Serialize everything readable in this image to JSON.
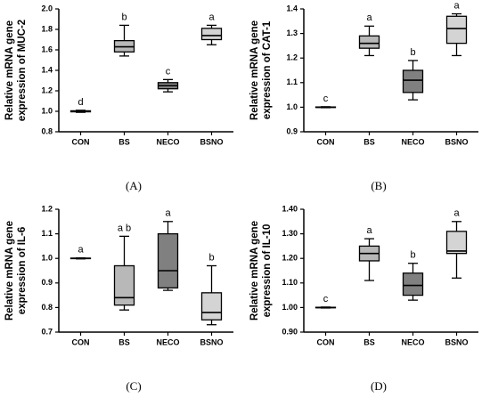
{
  "chart_data": [
    {
      "type": "box",
      "panel": "(A)",
      "ylabel": [
        "Relative mRNA gene",
        "expression of MUC-2"
      ],
      "categories": [
        "CON",
        "BS",
        "NECO",
        "BSNO"
      ],
      "colors": [
        "#000000",
        "#b8b8b8",
        "#808080",
        "#d4d4d4"
      ],
      "boxes": [
        {
          "min": 0.99,
          "q1": 0.995,
          "median": 1.0,
          "q3": 1.005,
          "max": 1.01
        },
        {
          "min": 1.54,
          "q1": 1.58,
          "median": 1.63,
          "q3": 1.69,
          "max": 1.84
        },
        {
          "min": 1.19,
          "q1": 1.22,
          "median": 1.25,
          "q3": 1.28,
          "max": 1.31
        },
        {
          "min": 1.65,
          "q1": 1.7,
          "median": 1.74,
          "q3": 1.81,
          "max": 1.84
        }
      ],
      "annotations": [
        "d",
        "b",
        "c",
        "a"
      ],
      "ylim": [
        0.8,
        2.0
      ],
      "yticks": [
        0.8,
        {
          "value": 1.0,
          "label": "1.0"
        },
        1.2,
        1.4,
        1.6,
        1.8,
        {
          "value": 2.0,
          "label": "2.0"
        }
      ]
    },
    {
      "type": "box",
      "panel": "(B)",
      "ylabel": [
        "Relative mRNA gene",
        "expression of CAT-1"
      ],
      "categories": [
        "CON",
        "BS",
        "NECO",
        "BSNO"
      ],
      "colors": [
        "#000000",
        "#b8b8b8",
        "#808080",
        "#d4d4d4"
      ],
      "boxes": [
        {
          "min": 0.998,
          "q1": 0.999,
          "median": 1.0,
          "q3": 1.001,
          "max": 1.002
        },
        {
          "min": 1.21,
          "q1": 1.24,
          "median": 1.26,
          "q3": 1.29,
          "max": 1.33
        },
        {
          "min": 1.03,
          "q1": 1.06,
          "median": 1.11,
          "q3": 1.15,
          "max": 1.19
        },
        {
          "min": 1.21,
          "q1": 1.26,
          "median": 1.32,
          "q3": 1.37,
          "max": 1.38
        }
      ],
      "annotations": [
        "c",
        "a",
        "b",
        "a"
      ],
      "ylim": [
        0.9,
        1.4
      ],
      "yticks": [
        0.9,
        {
          "value": 1.0,
          "label": "1.0"
        },
        1.1,
        1.2,
        1.3,
        1.4
      ]
    },
    {
      "type": "box",
      "panel": "(C)",
      "ylabel": [
        "Relative mRNA gene",
        "expression of IL-6"
      ],
      "categories": [
        "CON",
        "BS",
        "NECO",
        "BSNO"
      ],
      "colors": [
        "#000000",
        "#b8b8b8",
        "#808080",
        "#d4d4d4"
      ],
      "boxes": [
        {
          "min": 0.998,
          "q1": 0.999,
          "median": 1.0,
          "q3": 1.001,
          "max": 1.002
        },
        {
          "min": 0.79,
          "q1": 0.81,
          "median": 0.84,
          "q3": 0.97,
          "max": 1.09
        },
        {
          "min": 0.87,
          "q1": 0.88,
          "median": 0.95,
          "q3": 1.1,
          "max": 1.15
        },
        {
          "min": 0.73,
          "q1": 0.75,
          "median": 0.78,
          "q3": 0.86,
          "max": 0.97
        }
      ],
      "annotations": [
        "a",
        "a b",
        "a",
        "b"
      ],
      "ylim": [
        0.7,
        1.2
      ],
      "yticks": [
        0.7,
        0.8,
        0.9,
        {
          "value": 1.0,
          "label": "1.0"
        },
        1.1,
        1.2
      ]
    },
    {
      "type": "box",
      "panel": "(D)",
      "ylabel": [
        "Relative mRNA gene",
        "expression of IL-10"
      ],
      "categories": [
        "CON",
        "BS",
        "NECO",
        "BSNO"
      ],
      "colors": [
        "#000000",
        "#b8b8b8",
        "#808080",
        "#d4d4d4"
      ],
      "boxes": [
        {
          "min": 0.998,
          "q1": 0.999,
          "median": 1.0,
          "q3": 1.001,
          "max": 1.002
        },
        {
          "min": 1.11,
          "q1": 1.19,
          "median": 1.22,
          "q3": 1.25,
          "max": 1.28
        },
        {
          "min": 1.03,
          "q1": 1.05,
          "median": 1.09,
          "q3": 1.14,
          "max": 1.18
        },
        {
          "min": 1.12,
          "q1": 1.22,
          "median": 1.23,
          "q3": 1.31,
          "max": 1.35
        }
      ],
      "annotations": [
        "c",
        "a",
        "b",
        "a"
      ],
      "ylim": [
        0.9,
        1.4
      ],
      "yticks": [
        {
          "value": 0.9,
          "label": "0.90"
        },
        {
          "value": 1.0,
          "label": "1.00"
        },
        {
          "value": 1.1,
          "label": "1.10"
        },
        {
          "value": 1.2,
          "label": "1.20"
        },
        {
          "value": 1.3,
          "label": "1.30"
        },
        {
          "value": 1.4,
          "label": "1.40"
        }
      ]
    }
  ]
}
